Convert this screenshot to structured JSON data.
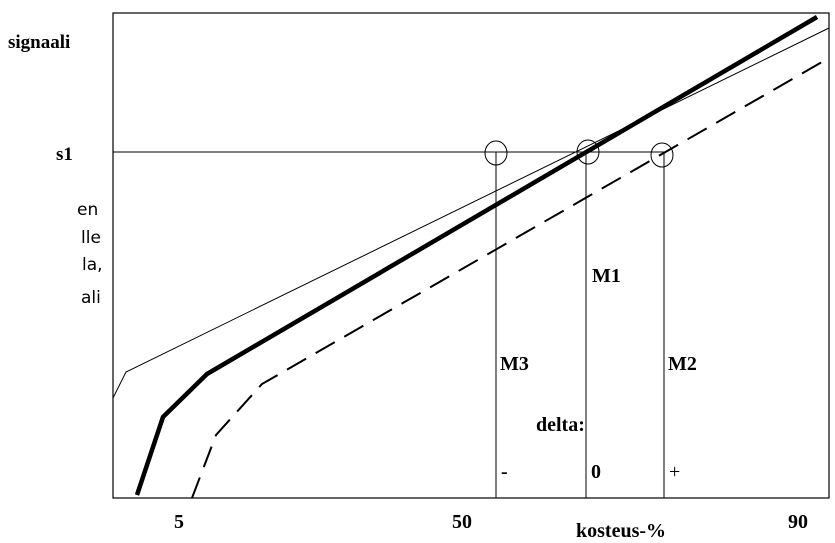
{
  "y_axis_label": "signaali",
  "level_label": "s1",
  "x_axis_label": "kosteus-%",
  "x_ticks": [
    "5",
    "50",
    "90"
  ],
  "markers": {
    "m1": "M1",
    "m2": "M2",
    "m3": "M3"
  },
  "delta": {
    "label": "delta:",
    "minus": "-",
    "zero": "0",
    "plus": "+"
  },
  "side_text_fragments": [
    "en",
    "lle",
    "la,",
    "ali"
  ]
}
